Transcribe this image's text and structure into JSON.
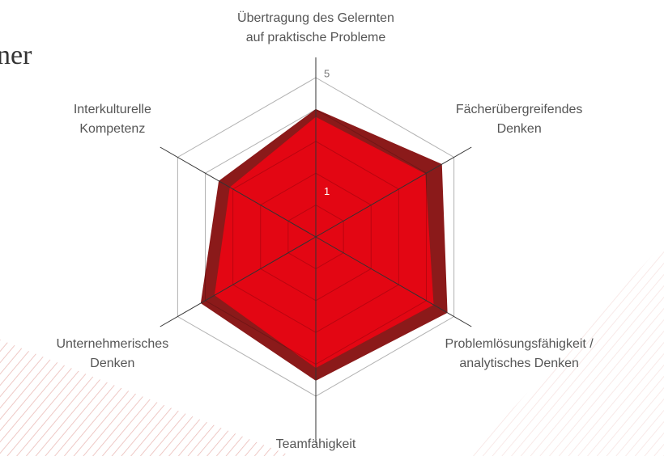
{
  "header": {
    "title": "ner"
  },
  "chart_data": {
    "type": "radar",
    "categories": [
      "Übertragung des Gelernten\nauf praktische Probleme",
      "Fächerübergreifendes\nDenken",
      "Problemlösungsfähigkeit /\nanalytisches Denken",
      "Teamfähigkeit",
      "Unternehmerisches\nDenken",
      "Interkulturelle\nKompetenz"
    ],
    "series": [
      {
        "color": "#8b1a1a",
        "values": [
          4.0,
          4.55,
          4.75,
          4.5,
          4.15,
          3.5
        ]
      },
      {
        "color": "#e30613",
        "values": [
          3.75,
          3.95,
          4.25,
          4.1,
          3.65,
          3.1
        ]
      }
    ],
    "ylim": [
      0,
      5
    ],
    "yticks": [
      1,
      5
    ],
    "grid_rings": [
      1,
      2,
      3,
      4,
      5
    ],
    "grid": true
  }
}
